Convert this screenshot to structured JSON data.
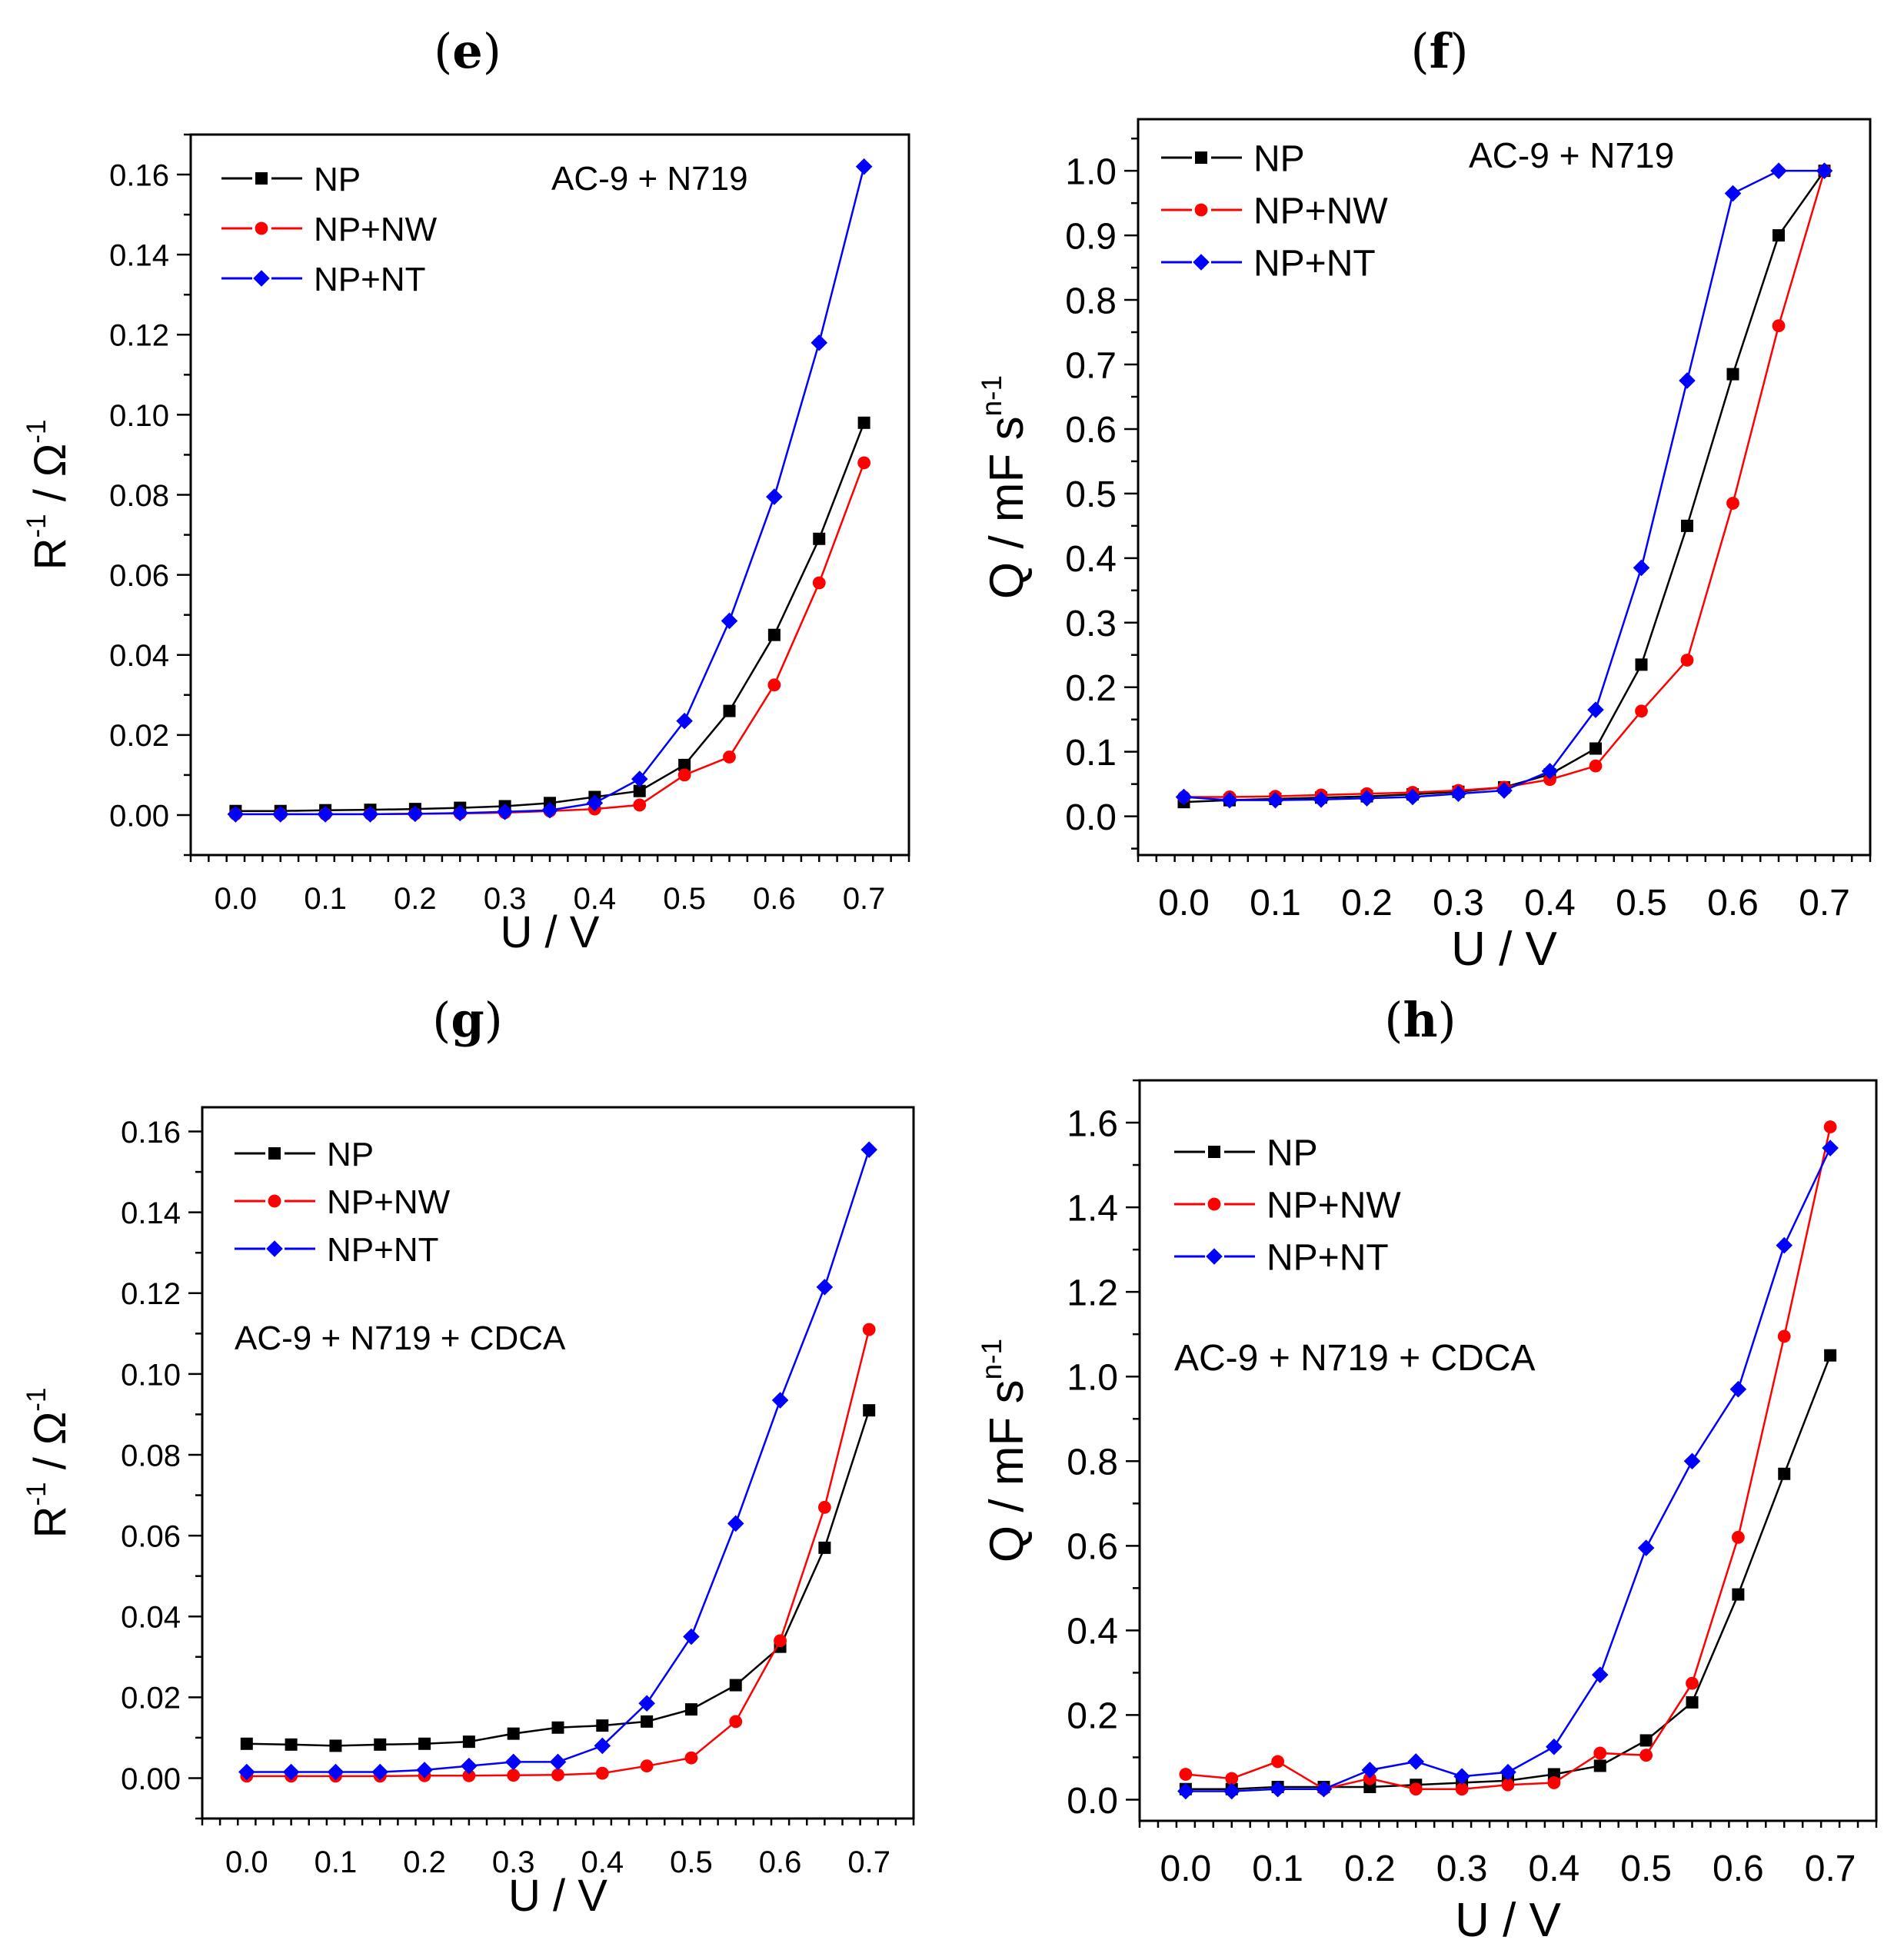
{
  "panel_labels": [
    "e",
    "f",
    "g",
    "h"
  ],
  "chart_data": [
    {
      "panel": "e",
      "type": "line",
      "annotation": "AC-9 + N719",
      "xlabel": "U / V",
      "ylabel": "R⁻¹ / Ω⁻¹",
      "ylabel_base": "R",
      "ylabel_sup1": "-1",
      "ylabel_mid": " / Ω",
      "ylabel_sup2": "-1",
      "xlim": [
        -0.05,
        0.75
      ],
      "ylim": [
        -0.01,
        0.17
      ],
      "xticks": [
        "0.0",
        "0.1",
        "0.2",
        "0.3",
        "0.4",
        "0.5",
        "0.6",
        "0.7"
      ],
      "yticks": [
        "0.00",
        "0.02",
        "0.04",
        "0.06",
        "0.08",
        "0.10",
        "0.12",
        "0.14",
        "0.16"
      ],
      "x": [
        0,
        0.05,
        0.1,
        0.15,
        0.2,
        0.25,
        0.3,
        0.35,
        0.4,
        0.45,
        0.5,
        0.55,
        0.6,
        0.65,
        0.7
      ],
      "series": [
        {
          "name": "NP",
          "color": "#000000",
          "marker": "square",
          "values": [
            0.001,
            0.001,
            0.0012,
            0.0013,
            0.0015,
            0.0018,
            0.0022,
            0.003,
            0.0045,
            0.006,
            0.0125,
            0.026,
            0.045,
            0.069,
            0.098
          ]
        },
        {
          "name": "NP+NW",
          "color": "#ff0000",
          "marker": "circle",
          "values": [
            0.0002,
            0.0002,
            0.0002,
            0.0002,
            0.0003,
            0.0004,
            0.0006,
            0.001,
            0.0015,
            0.0025,
            0.01,
            0.0145,
            0.0325,
            0.058,
            0.088
          ]
        },
        {
          "name": "NP+NT",
          "color": "#0000ff",
          "marker": "diamond",
          "values": [
            0.0002,
            0.0002,
            0.0002,
            0.0002,
            0.0003,
            0.0005,
            0.0008,
            0.0012,
            0.003,
            0.009,
            0.0235,
            0.0485,
            0.0795,
            0.118,
            0.162
          ]
        }
      ]
    },
    {
      "panel": "f",
      "type": "line",
      "annotation": "AC-9 + N719",
      "xlabel": "U / V",
      "ylabel": "Q / mF sⁿ⁻¹",
      "ylabel_base": "Q / mF s",
      "ylabel_sup1": "n-1",
      "xlim": [
        -0.05,
        0.75
      ],
      "ylim": [
        -0.06,
        1.08
      ],
      "xticks": [
        "0.0",
        "0.1",
        "0.2",
        "0.3",
        "0.4",
        "0.5",
        "0.6",
        "0.7"
      ],
      "yticks": [
        "0.0",
        "0.1",
        "0.2",
        "0.3",
        "0.4",
        "0.5",
        "0.6",
        "0.7",
        "0.8",
        "0.9",
        "1.0"
      ],
      "x": [
        0,
        0.05,
        0.1,
        0.15,
        0.2,
        0.25,
        0.3,
        0.35,
        0.4,
        0.45,
        0.5,
        0.55,
        0.6,
        0.65,
        0.7
      ],
      "series": [
        {
          "name": "NP",
          "color": "#000000",
          "marker": "square",
          "values": [
            0.022,
            0.025,
            0.027,
            0.029,
            0.031,
            0.034,
            0.038,
            0.045,
            0.065,
            0.105,
            0.235,
            0.45,
            0.685,
            0.9,
            1.0
          ]
        },
        {
          "name": "NP+NW",
          "color": "#ff0000",
          "marker": "circle",
          "values": [
            0.03,
            0.03,
            0.031,
            0.033,
            0.035,
            0.037,
            0.04,
            0.045,
            0.057,
            0.078,
            0.163,
            0.242,
            0.485,
            0.76,
            1.0
          ]
        },
        {
          "name": "NP+NT",
          "color": "#0000ff",
          "marker": "diamond",
          "values": [
            0.03,
            0.025,
            0.025,
            0.026,
            0.028,
            0.03,
            0.035,
            0.04,
            0.07,
            0.165,
            0.385,
            0.675,
            0.965,
            1.0,
            1.0
          ]
        }
      ]
    },
    {
      "panel": "g",
      "type": "line",
      "annotation": "AC-9 + N719 + CDCA",
      "xlabel": "U / V",
      "ylabel": "R⁻¹ / Ω⁻¹",
      "ylabel_base": "R",
      "ylabel_sup1": "-1",
      "ylabel_mid": " / Ω",
      "ylabel_sup2": "-1",
      "xlim": [
        -0.05,
        0.75
      ],
      "ylim": [
        -0.01,
        0.166
      ],
      "xticks": [
        "0.0",
        "0.1",
        "0.2",
        "0.3",
        "0.4",
        "0.5",
        "0.6",
        "0.7"
      ],
      "yticks": [
        "0.00",
        "0.02",
        "0.04",
        "0.06",
        "0.08",
        "0.10",
        "0.12",
        "0.14",
        "0.16"
      ],
      "x": [
        0,
        0.05,
        0.1,
        0.15,
        0.2,
        0.25,
        0.3,
        0.35,
        0.4,
        0.45,
        0.5,
        0.55,
        0.6,
        0.65,
        0.7
      ],
      "series": [
        {
          "name": "NP",
          "color": "#000000",
          "marker": "square",
          "values": [
            0.0085,
            0.0083,
            0.008,
            0.0083,
            0.0085,
            0.009,
            0.011,
            0.0125,
            0.013,
            0.014,
            0.017,
            0.023,
            0.0325,
            0.057,
            0.091
          ]
        },
        {
          "name": "NP+NW",
          "color": "#ff0000",
          "marker": "circle",
          "values": [
            0.0005,
            0.0005,
            0.0005,
            0.0005,
            0.0006,
            0.0006,
            0.0007,
            0.0008,
            0.0012,
            0.003,
            0.005,
            0.014,
            0.034,
            0.067,
            0.111
          ]
        },
        {
          "name": "NP+NT",
          "color": "#0000ff",
          "marker": "diamond",
          "values": [
            0.0015,
            0.0015,
            0.0015,
            0.0015,
            0.002,
            0.003,
            0.004,
            0.004,
            0.008,
            0.0185,
            0.035,
            0.063,
            0.0935,
            0.1215,
            0.1555
          ]
        }
      ]
    },
    {
      "panel": "h",
      "type": "line",
      "annotation": "AC-9 + N719 + CDCA",
      "xlabel": "U / V",
      "ylabel": "Q / mF sⁿ⁻¹",
      "ylabel_base": "Q / mF s",
      "ylabel_sup1": "n-1",
      "xlim": [
        -0.05,
        0.75
      ],
      "ylim": [
        -0.05,
        1.7
      ],
      "xticks": [
        "0.0",
        "0.1",
        "0.2",
        "0.3",
        "0.4",
        "0.5",
        "0.6",
        "0.7"
      ],
      "yticks": [
        "0.0",
        "0.2",
        "0.4",
        "0.6",
        "0.8",
        "1.0",
        "1.2",
        "1.4",
        "1.6"
      ],
      "x": [
        0,
        0.05,
        0.1,
        0.15,
        0.2,
        0.25,
        0.3,
        0.35,
        0.4,
        0.45,
        0.5,
        0.55,
        0.6,
        0.65,
        0.7
      ],
      "series": [
        {
          "name": "NP",
          "color": "#000000",
          "marker": "square",
          "values": [
            0.025,
            0.025,
            0.03,
            0.03,
            0.03,
            0.035,
            0.04,
            0.045,
            0.06,
            0.08,
            0.14,
            0.23,
            0.485,
            0.77,
            1.05
          ]
        },
        {
          "name": "NP+NW",
          "color": "#ff0000",
          "marker": "circle",
          "values": [
            0.06,
            0.05,
            0.09,
            0.025,
            0.05,
            0.025,
            0.025,
            0.035,
            0.04,
            0.11,
            0.105,
            0.275,
            0.62,
            1.095,
            1.59
          ]
        },
        {
          "name": "NP+NT",
          "color": "#0000ff",
          "marker": "diamond",
          "values": [
            0.02,
            0.02,
            0.025,
            0.025,
            0.07,
            0.09,
            0.055,
            0.065,
            0.125,
            0.295,
            0.595,
            0.8,
            0.97,
            1.31,
            1.54
          ]
        }
      ]
    }
  ]
}
